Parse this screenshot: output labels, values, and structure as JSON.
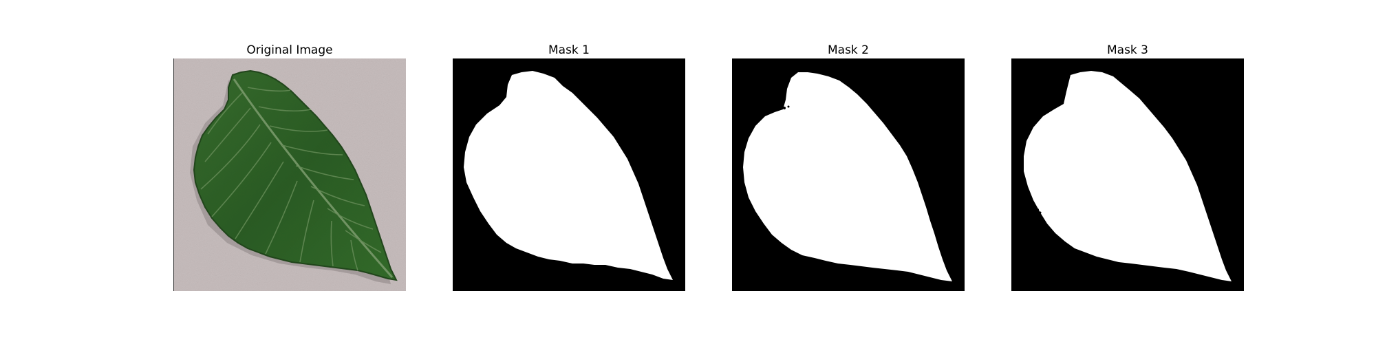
{
  "figure": {
    "panels": [
      {
        "title": "Original Image"
      },
      {
        "title": "Mask 1"
      },
      {
        "title": "Mask 2"
      },
      {
        "title": "Mask 3"
      }
    ]
  },
  "colors": {
    "background": "#c6bcbc",
    "leaf_dark": "#2b5a23",
    "leaf_mid": "#3f7a33",
    "leaf_vein": "#7fa86d",
    "mask_fg": "#ffffff",
    "mask_bg": "#000000"
  }
}
